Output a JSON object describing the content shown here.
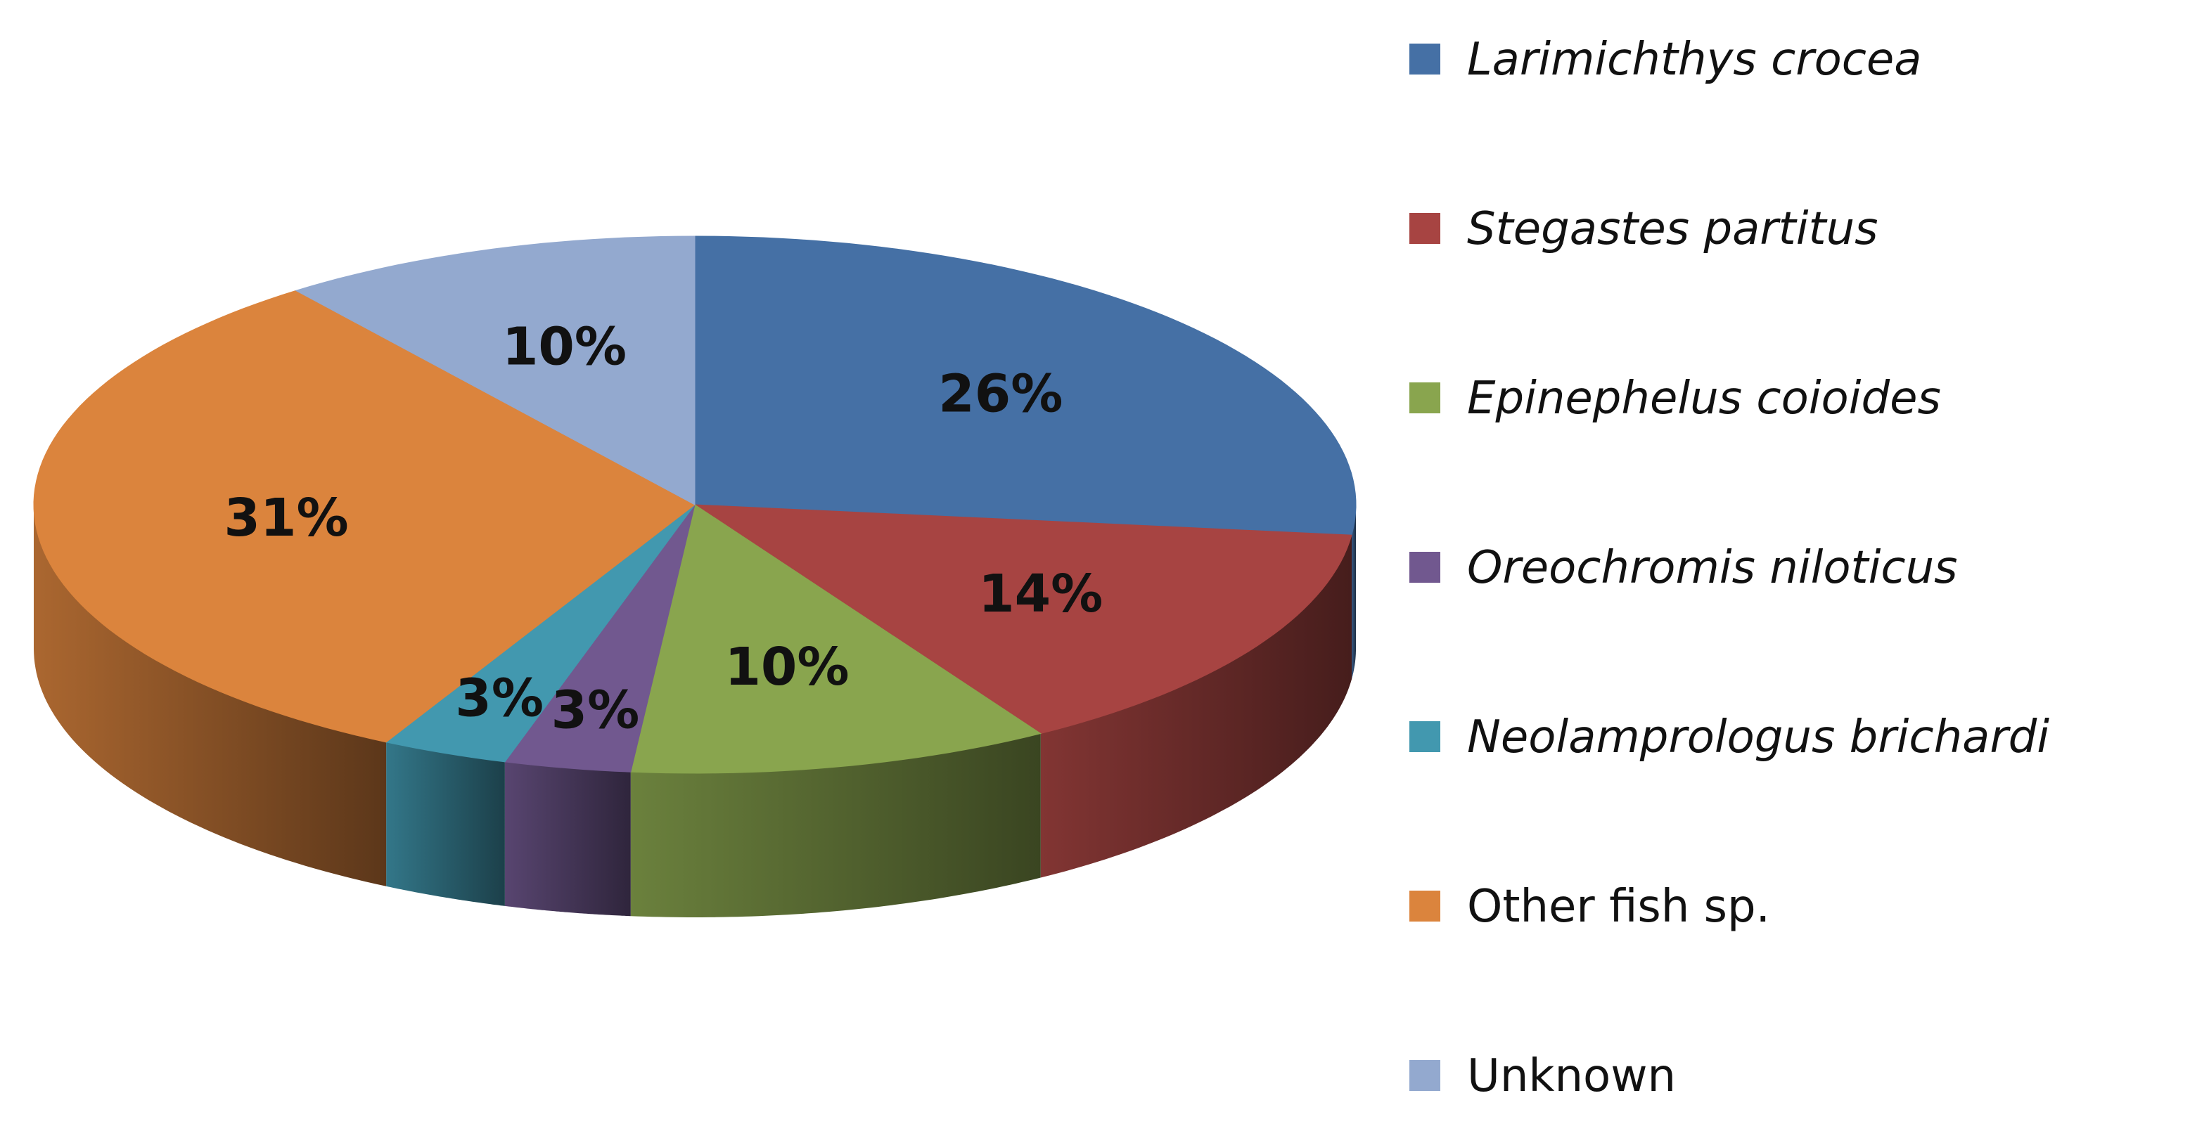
{
  "chart_data": {
    "type": "pie",
    "style": "3d-tilted",
    "unit": "%",
    "slices": [
      {
        "name": "Larimichthys crocea",
        "value": 26,
        "label": "26%",
        "color": "#4570A5",
        "italic": true
      },
      {
        "name": "Stegastes partitus",
        "value": 14,
        "label": "14%",
        "color": "#A74442",
        "italic": true
      },
      {
        "name": "Epinephelus coioides",
        "value": 10,
        "label": "10%",
        "color": "#89A54E",
        "italic": true
      },
      {
        "name": "Oreochromis niloticus",
        "value": 3,
        "label": "3%",
        "color": "#71588F",
        "italic": true
      },
      {
        "name": "Neolamprologus brichardi",
        "value": 3,
        "label": "3%",
        "color": "#4298AF",
        "italic": true
      },
      {
        "name": "Other fish sp.",
        "value": 31,
        "label": "31%",
        "color": "#DB843D",
        "italic": false
      },
      {
        "name": "Unknown",
        "value": 10,
        "label": "10%",
        "color": "#93A9CF",
        "italic": false
      }
    ],
    "legend": {
      "position": "right"
    },
    "start": "12 o'clock",
    "direction": "clockwise"
  }
}
